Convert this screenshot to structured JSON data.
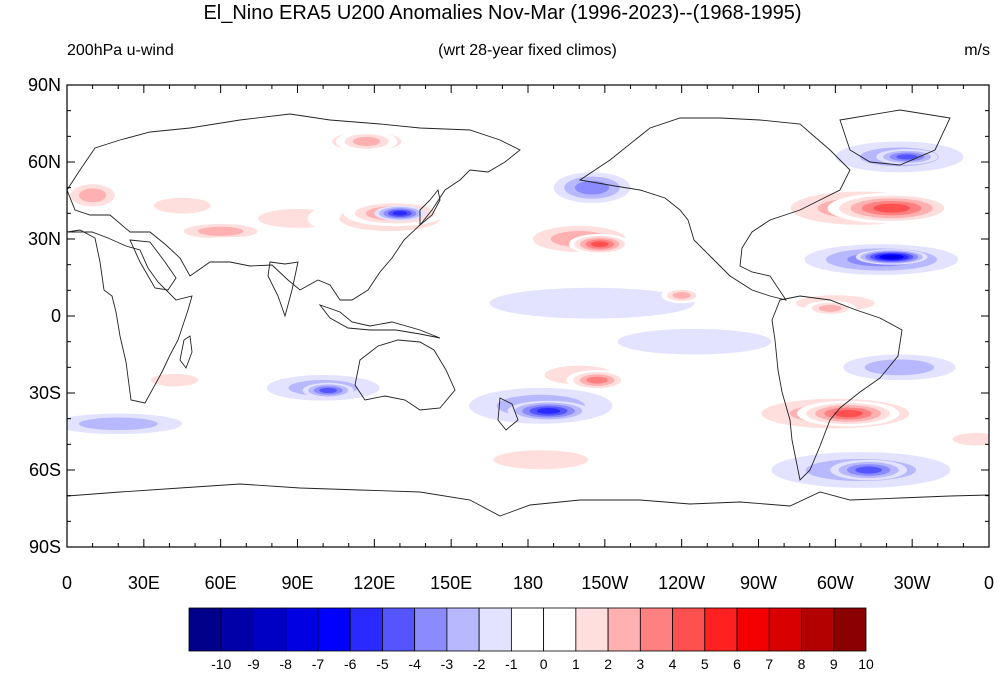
{
  "title": "El_Nino ERA5 U200 Anomalies Nov-Mar (1996-2023)--(1968-1995)",
  "left_string": "200hPa u-wind",
  "center_string": "(wrt 28-year fixed climos)",
  "right_string": "m/s",
  "y_ticks": [
    {
      "label": "90N",
      "lat": 90
    },
    {
      "label": "60N",
      "lat": 60
    },
    {
      "label": "30N",
      "lat": 30
    },
    {
      "label": "0",
      "lat": 0
    },
    {
      "label": "30S",
      "lat": -30
    },
    {
      "label": "60S",
      "lat": -60
    },
    {
      "label": "90S",
      "lat": -90
    }
  ],
  "x_ticks": [
    {
      "label": "0",
      "lon": 0
    },
    {
      "label": "30E",
      "lon": 30
    },
    {
      "label": "60E",
      "lon": 60
    },
    {
      "label": "90E",
      "lon": 90
    },
    {
      "label": "120E",
      "lon": 120
    },
    {
      "label": "150E",
      "lon": 150
    },
    {
      "label": "180",
      "lon": 180
    },
    {
      "label": "150W",
      "lon": 210
    },
    {
      "label": "120W",
      "lon": 240
    },
    {
      "label": "90W",
      "lon": 270
    },
    {
      "label": "60W",
      "lon": 300
    },
    {
      "label": "30W",
      "lon": 330
    },
    {
      "label": "0",
      "lon": 360
    }
  ],
  "colorbar": {
    "labels": [
      "-10",
      "-9",
      "-8",
      "-7",
      "-6",
      "-5",
      "-4",
      "-3",
      "-2",
      "-1",
      "0",
      "1",
      "2",
      "3",
      "4",
      "5",
      "6",
      "7",
      "8",
      "9",
      "10"
    ],
    "colors": [
      "#00008b",
      "#0000a8",
      "#0000c5",
      "#0000e2",
      "#0000ff",
      "#2a2aff",
      "#5555ff",
      "#8b8bff",
      "#b8b8ff",
      "#e3e3ff",
      "#ffffff",
      "#ffffff",
      "#ffdede",
      "#ffb0b0",
      "#ff8080",
      "#ff5050",
      "#ff2020",
      "#f50000",
      "#d80000",
      "#b30000",
      "#8b0000"
    ]
  },
  "anomaly_blobs": [
    {
      "lon": 45,
      "lat": 43,
      "rx": 18,
      "ry": 5,
      "v": 2
    },
    {
      "lon": 90,
      "lat": 38,
      "rx": 25,
      "ry": 6,
      "v": 2
    },
    {
      "lon": 60,
      "lat": 33,
      "rx": 20,
      "ry": 4,
      "v": 3
    },
    {
      "lon": 126,
      "lat": 38,
      "rx": 32,
      "ry": 8,
      "v": 2
    },
    {
      "lon": 128,
      "lat": 40,
      "rx": 20,
      "ry": 5,
      "v": 4
    },
    {
      "lon": 130,
      "lat": 40,
      "rx": 10,
      "ry": 3,
      "v": -5
    },
    {
      "lon": 205,
      "lat": 50,
      "rx": 15,
      "ry": 6,
      "v": -3
    },
    {
      "lon": 200,
      "lat": 30,
      "rx": 25,
      "ry": 7,
      "v": 3
    },
    {
      "lon": 208,
      "lat": 28,
      "rx": 12,
      "ry": 4,
      "v": 5
    },
    {
      "lon": 80,
      "lat": 25,
      "rx": 60,
      "ry": 6,
      "v": 1
    },
    {
      "lon": 117,
      "lat": 68,
      "rx": 22,
      "ry": 6,
      "v": 2
    },
    {
      "lon": 117,
      "lat": 68,
      "rx": 12,
      "ry": 4,
      "v": 3
    },
    {
      "lon": 310,
      "lat": 42,
      "rx": 38,
      "ry": 9,
      "v": 3
    },
    {
      "lon": 322,
      "lat": 42,
      "rx": 25,
      "ry": 6,
      "v": 5
    },
    {
      "lon": 318,
      "lat": 22,
      "rx": 30,
      "ry": 6,
      "v": -3
    },
    {
      "lon": 322,
      "lat": 23,
      "rx": 14,
      "ry": 3,
      "v": -7
    },
    {
      "lon": 325,
      "lat": 62,
      "rx": 25,
      "ry": 6,
      "v": -2
    },
    {
      "lon": 328,
      "lat": 62,
      "rx": 12,
      "ry": 3,
      "v": -4
    },
    {
      "lon": 200,
      "lat": -23,
      "rx": 22,
      "ry": 6,
      "v": 2
    },
    {
      "lon": 207,
      "lat": -25,
      "rx": 12,
      "ry": 4,
      "v": 4
    },
    {
      "lon": 185,
      "lat": -35,
      "rx": 28,
      "ry": 7,
      "v": -2
    },
    {
      "lon": 188,
      "lat": -37,
      "rx": 16,
      "ry": 4,
      "v": -5
    },
    {
      "lon": 100,
      "lat": -28,
      "rx": 22,
      "ry": 5,
      "v": -2
    },
    {
      "lon": 102,
      "lat": -29,
      "rx": 10,
      "ry": 3,
      "v": -4
    },
    {
      "lon": 20,
      "lat": -42,
      "rx": 25,
      "ry": 4,
      "v": -2
    },
    {
      "lon": 42,
      "lat": -25,
      "rx": 15,
      "ry": 4,
      "v": 2
    },
    {
      "lon": 185,
      "lat": -56,
      "rx": 30,
      "ry": 6,
      "v": 2
    },
    {
      "lon": 300,
      "lat": -38,
      "rx": 40,
      "ry": 8,
      "v": 3
    },
    {
      "lon": 305,
      "lat": -38,
      "rx": 20,
      "ry": 5,
      "v": 5
    },
    {
      "lon": 310,
      "lat": -60,
      "rx": 35,
      "ry": 7,
      "v": -2
    },
    {
      "lon": 313,
      "lat": -60,
      "rx": 15,
      "ry": 4,
      "v": -4
    },
    {
      "lon": 325,
      "lat": -20,
      "rx": 22,
      "ry": 5,
      "v": -2
    },
    {
      "lon": 300,
      "lat": 5,
      "rx": 25,
      "ry": 5,
      "v": 2
    },
    {
      "lon": 298,
      "lat": 3,
      "rx": 10,
      "ry": 3,
      "v": 3
    },
    {
      "lon": 205,
      "lat": 5,
      "rx": 40,
      "ry": 6,
      "v": -1
    },
    {
      "lon": 245,
      "lat": -10,
      "rx": 30,
      "ry": 5,
      "v": -1
    },
    {
      "lon": 10,
      "lat": 47,
      "rx": 12,
      "ry": 6,
      "v": 3
    },
    {
      "lon": 355,
      "lat": -48,
      "rx": 15,
      "ry": 4,
      "v": 2
    },
    {
      "lon": 200,
      "lat": 82,
      "rx": 60,
      "ry": 5,
      "v": 1
    },
    {
      "lon": 240,
      "lat": 8,
      "rx": 8,
      "ry": 3,
      "v": 3
    },
    {
      "lon": 95,
      "lat": -10,
      "rx": 28,
      "ry": 5,
      "v": 1
    }
  ]
}
